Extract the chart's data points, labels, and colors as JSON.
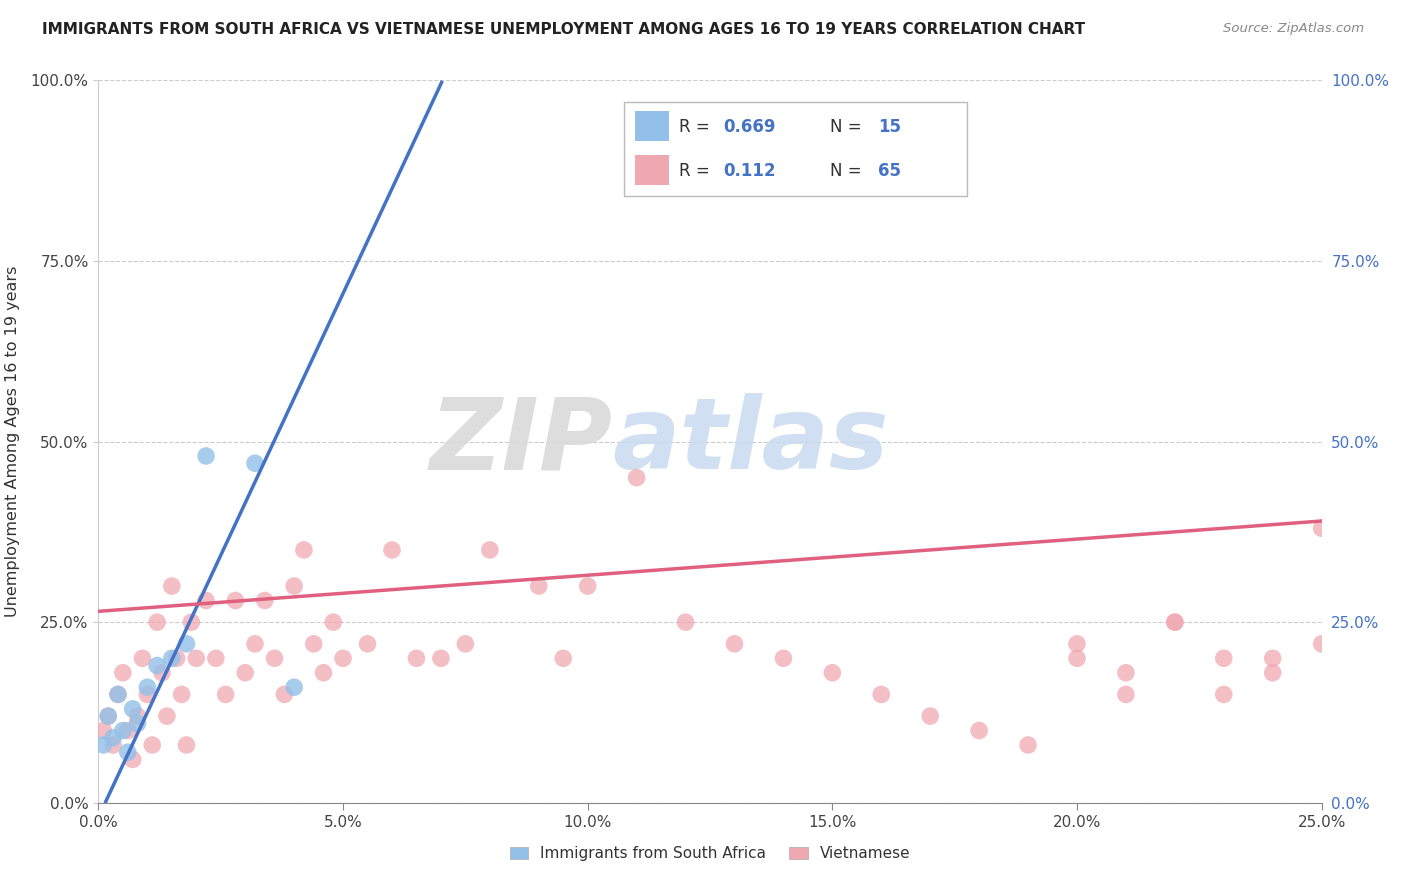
{
  "title": "IMMIGRANTS FROM SOUTH AFRICA VS VIETNAMESE UNEMPLOYMENT AMONG AGES 16 TO 19 YEARS CORRELATION CHART",
  "source": "Source: ZipAtlas.com",
  "ylabel": "Unemployment Among Ages 16 to 19 years",
  "xmin": 0.0,
  "xmax": 0.25,
  "ymin": 0.0,
  "ymax": 1.0,
  "xticks": [
    0.0,
    0.05,
    0.1,
    0.15,
    0.2,
    0.25
  ],
  "xticklabels": [
    "0.0%",
    "5.0%",
    "10.0%",
    "15.0%",
    "20.0%",
    "25.0%"
  ],
  "yticks": [
    0.0,
    0.25,
    0.5,
    0.75,
    1.0
  ],
  "yticklabels": [
    "0.0%",
    "25.0%",
    "50.0%",
    "75.0%",
    "100.0%"
  ],
  "blue_R": "0.669",
  "blue_N": "15",
  "pink_R": "0.112",
  "pink_N": "65",
  "blue_color": "#92c0e8",
  "pink_color": "#f0a8b0",
  "blue_line_color": "#4472c4",
  "pink_line_color": "#e06080",
  "blue_scatter_x": [
    0.001,
    0.002,
    0.003,
    0.004,
    0.005,
    0.006,
    0.007,
    0.008,
    0.01,
    0.012,
    0.015,
    0.018,
    0.022,
    0.032,
    0.04
  ],
  "blue_scatter_y": [
    0.08,
    0.12,
    0.09,
    0.15,
    0.1,
    0.07,
    0.13,
    0.11,
    0.16,
    0.19,
    0.2,
    0.22,
    0.48,
    0.47,
    0.16
  ],
  "pink_scatter_x": [
    0.001,
    0.002,
    0.003,
    0.004,
    0.005,
    0.006,
    0.007,
    0.008,
    0.009,
    0.01,
    0.011,
    0.012,
    0.013,
    0.014,
    0.015,
    0.016,
    0.017,
    0.018,
    0.019,
    0.02,
    0.022,
    0.024,
    0.026,
    0.028,
    0.03,
    0.032,
    0.034,
    0.036,
    0.038,
    0.04,
    0.042,
    0.044,
    0.046,
    0.048,
    0.05,
    0.055,
    0.06,
    0.065,
    0.07,
    0.075,
    0.08,
    0.09,
    0.095,
    0.1,
    0.11,
    0.12,
    0.13,
    0.14,
    0.15,
    0.16,
    0.17,
    0.18,
    0.19,
    0.2,
    0.21,
    0.22,
    0.23,
    0.24,
    0.25,
    0.2,
    0.21,
    0.22,
    0.23,
    0.24,
    0.25
  ],
  "pink_scatter_y": [
    0.1,
    0.12,
    0.08,
    0.15,
    0.18,
    0.1,
    0.06,
    0.12,
    0.2,
    0.15,
    0.08,
    0.25,
    0.18,
    0.12,
    0.3,
    0.2,
    0.15,
    0.08,
    0.25,
    0.2,
    0.28,
    0.2,
    0.15,
    0.28,
    0.18,
    0.22,
    0.28,
    0.2,
    0.15,
    0.3,
    0.35,
    0.22,
    0.18,
    0.25,
    0.2,
    0.22,
    0.35,
    0.2,
    0.2,
    0.22,
    0.35,
    0.3,
    0.2,
    0.3,
    0.45,
    0.25,
    0.22,
    0.2,
    0.18,
    0.15,
    0.12,
    0.1,
    0.08,
    0.2,
    0.15,
    0.25,
    0.2,
    0.18,
    0.38,
    0.22,
    0.18,
    0.25,
    0.15,
    0.2,
    0.22
  ],
  "blue_trend_slope": 14.5,
  "blue_trend_intercept": -0.02,
  "pink_trend_slope": 0.5,
  "pink_trend_intercept": 0.265,
  "watermark_zip": "ZIP",
  "watermark_atlas": "atlas",
  "legend_label_blue": "Immigrants from South Africa",
  "legend_label_pink": "Vietnamese"
}
